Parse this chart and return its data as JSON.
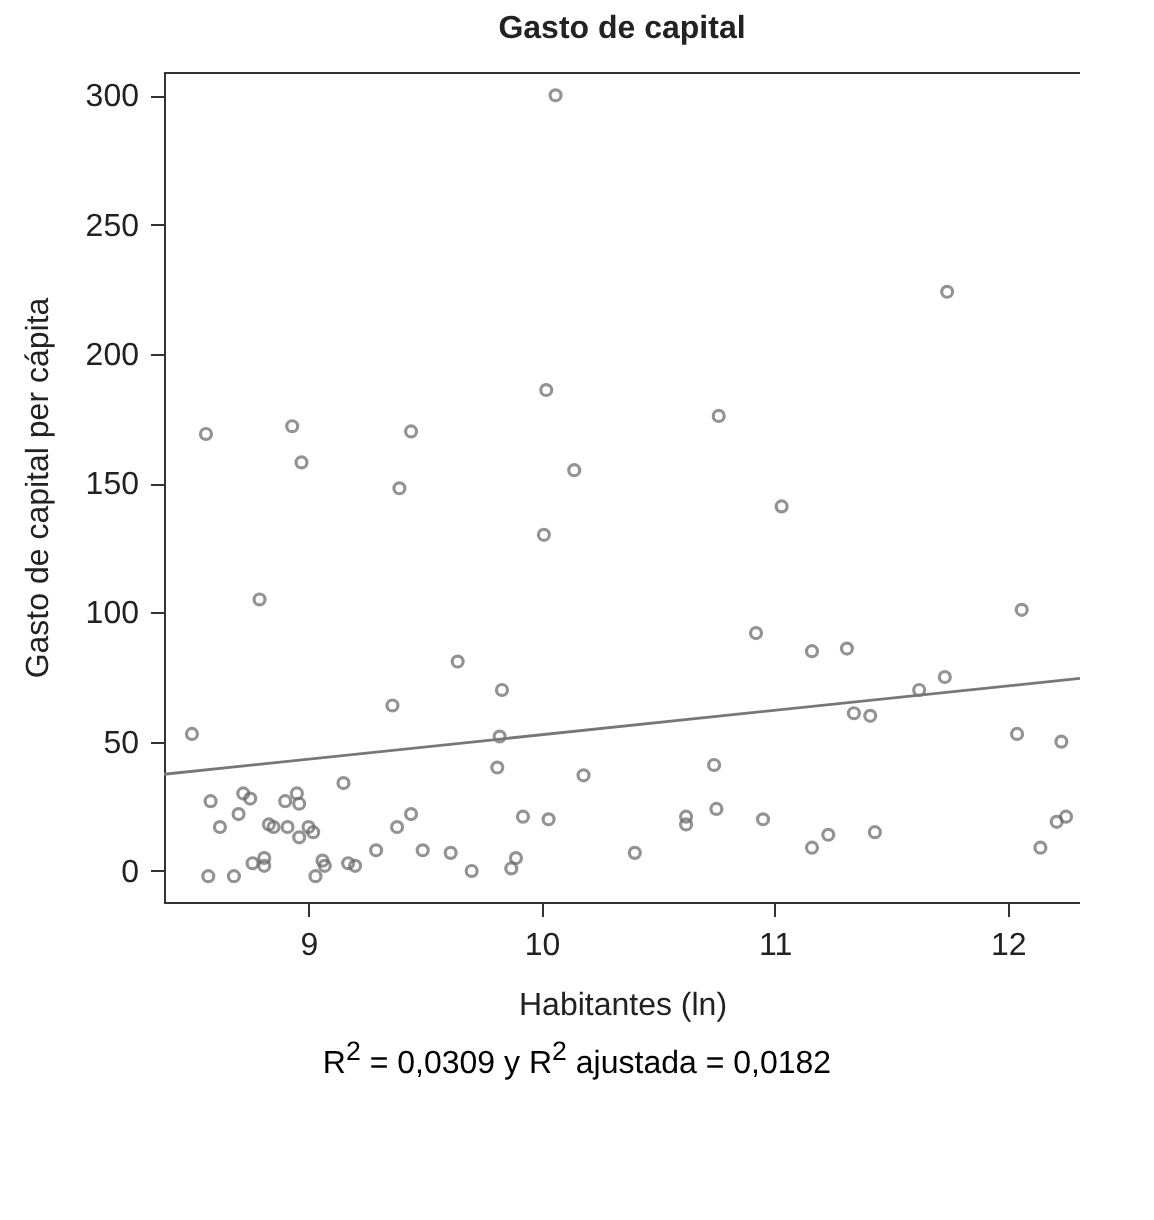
{
  "chart_data": {
    "type": "scatter",
    "title": "Gasto de capital",
    "xlabel": "Habitantes (ln)",
    "ylabel": "Gasto de capital per cápita",
    "annotations": [
      "R$^{2}$ = 0,0309 y R$^{2}$ ajustada = 0,0182"
    ],
    "xlim": [
      8.38,
      12.31
    ],
    "xticks": [
      9,
      10,
      11,
      12
    ],
    "ylim": [
      -12,
      309
    ],
    "yticks": [
      0,
      50,
      100,
      150,
      200,
      250,
      300
    ],
    "grid": false,
    "series": [
      {
        "marker": "circle",
        "color": "#666666",
        "x": [
          10.06,
          8.56,
          8.93,
          8.97,
          9.44,
          9.39,
          10.02,
          10.14,
          11.74,
          10.76,
          11.03,
          10.01,
          8.79,
          9.64,
          8.5,
          9.36,
          9.83,
          9.82,
          9.81,
          10.18,
          8.58,
          8.72,
          8.75,
          8.7,
          8.62,
          8.83,
          8.85,
          8.91,
          8.9,
          8.95,
          8.96,
          9.0,
          9.02,
          8.96,
          9.15,
          9.44,
          9.38,
          9.92,
          10.03,
          8.57,
          8.68,
          8.76,
          8.81,
          8.81,
          9.03,
          9.06,
          9.07,
          9.17,
          9.2,
          9.29,
          9.49,
          9.61,
          9.7,
          9.87,
          9.89,
          12.06,
          10.92,
          11.16,
          11.31,
          11.73,
          11.62,
          11.34,
          11.41,
          12.04,
          12.23,
          10.74,
          10.4,
          10.62,
          10.62,
          10.75,
          10.95,
          11.16,
          11.23,
          11.43,
          12.14,
          12.21,
          12.25
        ],
        "values": [
          300,
          169,
          172,
          158,
          170,
          148,
          186,
          155,
          224,
          176,
          141,
          130,
          105,
          81,
          53,
          64,
          70,
          52,
          40,
          37,
          27,
          30,
          28,
          22,
          17,
          18,
          17,
          17,
          27,
          30,
          26,
          17,
          15,
          13,
          34,
          22,
          17,
          21,
          20,
          -2,
          -2,
          3,
          5,
          2,
          -2,
          4,
          2,
          3,
          2,
          8,
          8,
          7,
          0,
          1,
          5,
          101,
          92,
          85,
          86,
          75,
          70,
          61,
          60,
          53,
          50,
          41,
          7,
          21,
          18,
          24,
          20,
          9,
          14,
          15,
          9,
          19,
          21
        ]
      },
      {
        "type": "line",
        "color": "#777777",
        "x": [
          8.38,
          12.31
        ],
        "values": [
          37.4,
          74.5
        ]
      }
    ]
  }
}
